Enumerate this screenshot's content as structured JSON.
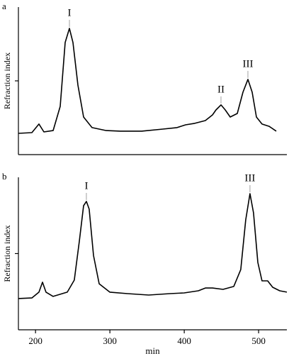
{
  "chart_data": [
    {
      "type": "line",
      "panel_label": "a",
      "ylabel": "Refraction index",
      "color": "#000000",
      "x": [
        177,
        195.1,
        204.6,
        211.3,
        223.7,
        233.2,
        239.9,
        245.6,
        250.3,
        257.0,
        264.6,
        276.0,
        295.1,
        314.1,
        342.7,
        371.3,
        390.3,
        401.8,
        414.1,
        428.4,
        438.0,
        442.7,
        449.4,
        455.1,
        461.8,
        471.3,
        478.9,
        485.6,
        491.3,
        497.0,
        504.6,
        514.1,
        523.7
      ],
      "values": [
        14.4,
        14.9,
        20.7,
        15.4,
        16.3,
        32.7,
        76.0,
        85.6,
        76.0,
        47.1,
        25.5,
        18.3,
        16.3,
        15.9,
        15.9,
        17.3,
        18.3,
        20.2,
        21.2,
        23.1,
        26.9,
        30.3,
        33.7,
        30.3,
        25.5,
        27.9,
        42.3,
        51.0,
        42.3,
        25.5,
        20.7,
        19.2,
        15.9
      ],
      "xlim": [
        177,
        538
      ],
      "ylim": [
        0,
        100
      ],
      "yticks": [
        50
      ],
      "annotations": [
        {
          "text": "I",
          "x": 245.6,
          "y": 85.6
        },
        {
          "text": "II",
          "x": 449.4,
          "y": 33.7
        },
        {
          "text": "III",
          "x": 485.6,
          "y": 51.0
        }
      ]
    },
    {
      "type": "line",
      "panel_label": "b",
      "ylabel": "Refraction index",
      "xlabel": "min",
      "color": "#000000",
      "x": [
        177,
        195.1,
        204.6,
        209.4,
        214.1,
        223.7,
        242.7,
        252.2,
        258.9,
        264.6,
        268.4,
        272.2,
        278.0,
        285.6,
        299.9,
        323.7,
        352.2,
        380.8,
        399.9,
        418.9,
        428.4,
        438.0,
        452.2,
        466.6,
        476.0,
        482.7,
        488.4,
        493.1,
        498.9,
        504.6,
        512.2,
        518.9,
        528.4,
        538.0
      ],
      "values": [
        20.5,
        20.9,
        24.7,
        31.2,
        24.7,
        21.9,
        24.7,
        32.6,
        58.1,
        81.4,
        84.2,
        79.1,
        48.8,
        30.2,
        24.7,
        23.7,
        22.8,
        23.7,
        24.2,
        25.6,
        27.4,
        27.4,
        26.5,
        28.4,
        39.5,
        72.1,
        89.3,
        76.7,
        44.2,
        32.1,
        32.1,
        27.9,
        25.6,
        24.7
      ],
      "xlim": [
        177,
        538
      ],
      "ylim": [
        0,
        100
      ],
      "xticks": [
        200,
        300,
        400,
        500
      ],
      "yticks": [
        50
      ],
      "annotations": [
        {
          "text": "I",
          "x": 268.4,
          "y": 84.2
        },
        {
          "text": "III",
          "x": 488.4,
          "y": 89.3
        }
      ]
    }
  ]
}
